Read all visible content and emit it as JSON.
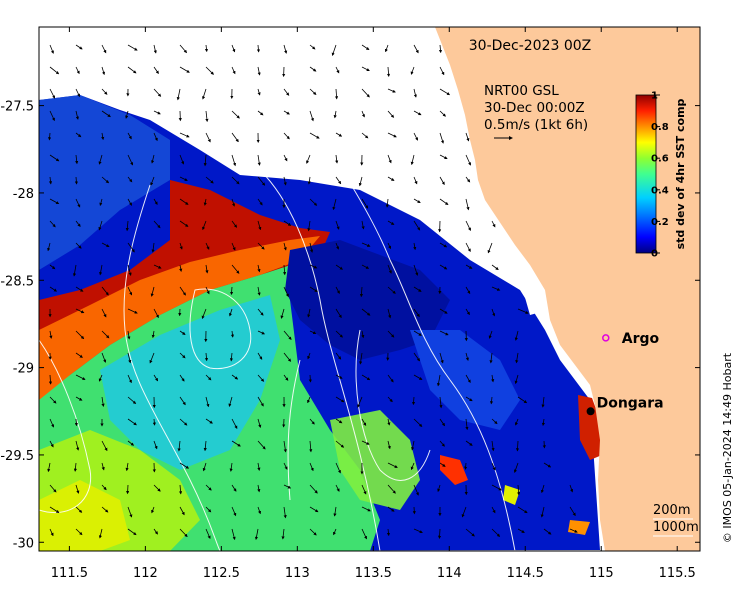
{
  "title": "30-Dec-2023 00Z",
  "info": {
    "line1": "NRT00 GSL",
    "line2": "30-Dec 00:00Z",
    "line3": "0.5m/s (1kt 6h)"
  },
  "colorbar": {
    "label": "std dev of 4hr SST comp",
    "ticks": [
      "1",
      "0.8",
      "0.6",
      "0.4",
      "0.2",
      "0"
    ],
    "tick_values": [
      1,
      0.8,
      0.6,
      0.4,
      0.2,
      0
    ],
    "colors": [
      "#000080",
      "#0000ff",
      "#0080ff",
      "#00d0ff",
      "#40ff90",
      "#90ff30",
      "#ffff00",
      "#ff9000",
      "#ff2000",
      "#900000"
    ]
  },
  "axes": {
    "x_ticks": [
      "111.5",
      "112",
      "112.5",
      "113",
      "113.5",
      "114",
      "114.5",
      "115",
      "115.5"
    ],
    "x_values": [
      111.5,
      112,
      112.5,
      113,
      113.5,
      114,
      114.5,
      115,
      115.5
    ],
    "y_ticks": [
      "-27.5",
      "-28",
      "-28.5",
      "-29",
      "-29.5",
      "-30"
    ],
    "y_values": [
      -27.5,
      -28,
      -28.5,
      -29,
      -29.5,
      -30
    ],
    "lon_range": [
      111.3,
      115.65
    ],
    "lat_range": [
      -30.05,
      -27.05
    ]
  },
  "places": [
    {
      "label": "Argo",
      "lon": 115.03,
      "lat": -28.83,
      "marker": "magenta-circle"
    },
    {
      "label": "Dongara",
      "lon": 114.93,
      "lat": -29.25,
      "marker": "black-dot"
    }
  ],
  "bathymetry_legend": [
    "200m",
    "1000m"
  ],
  "credit": "© IMOS 05-Jan-2024 14:49 Hobart",
  "land_color": "#fdc99b"
}
